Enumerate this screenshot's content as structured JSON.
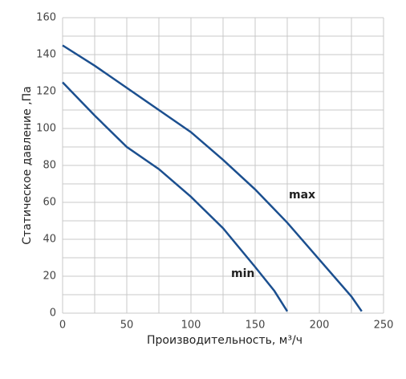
{
  "chart_data": {
    "type": "line",
    "xlabel": "Производительность, м³/ч",
    "ylabel": "Статическое давление ,Па",
    "xlim": [
      0,
      250
    ],
    "xticks": [
      0,
      50,
      100,
      150,
      200,
      250
    ],
    "ylim": [
      0,
      160
    ],
    "yticks": [
      0,
      20,
      40,
      60,
      80,
      100,
      120,
      140,
      160
    ],
    "xgrid": [
      0,
      25,
      50,
      75,
      100,
      125,
      150,
      175,
      200,
      225,
      250
    ],
    "ygrid": [
      0,
      10,
      20,
      30,
      40,
      50,
      60,
      70,
      80,
      90,
      100,
      110,
      120,
      130,
      140,
      150,
      160
    ],
    "grid": true,
    "series": [
      {
        "name": "max",
        "color": "#1b4f8f",
        "x": [
          0,
          25,
          50,
          75,
          100,
          125,
          150,
          175,
          200,
          225,
          233
        ],
        "values": [
          145,
          134,
          122,
          110,
          98,
          83,
          67,
          49,
          29,
          9,
          1
        ]
      },
      {
        "name": "min",
        "color": "#1b4f8f",
        "x": [
          0,
          25,
          50,
          75,
          100,
          125,
          150,
          165,
          175
        ],
        "values": [
          125,
          107,
          90,
          78,
          63,
          46,
          25,
          12,
          1
        ]
      }
    ]
  }
}
